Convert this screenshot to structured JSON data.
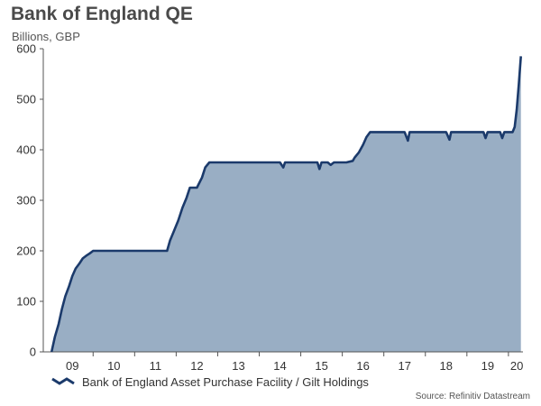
{
  "chart_data": {
    "type": "area",
    "title": "Bank of England QE",
    "subtitle": "Billions, GBP",
    "xlabel": "",
    "ylabel": "",
    "ylim": [
      0,
      600
    ],
    "xlim": [
      2008.8,
      2020.35
    ],
    "yticks": [
      0,
      100,
      200,
      300,
      400,
      500,
      600
    ],
    "xticks": [
      {
        "label": "09",
        "value": 2009.5
      },
      {
        "label": "10",
        "value": 2010.5
      },
      {
        "label": "11",
        "value": 2011.5
      },
      {
        "label": "12",
        "value": 2012.5
      },
      {
        "label": "13",
        "value": 2013.5
      },
      {
        "label": "14",
        "value": 2014.5
      },
      {
        "label": "15",
        "value": 2015.5
      },
      {
        "label": "16",
        "value": 2016.5
      },
      {
        "label": "17",
        "value": 2017.5
      },
      {
        "label": "18",
        "value": 2018.5
      },
      {
        "label": "19",
        "value": 2019.5
      },
      {
        "label": "20",
        "value": 2020.2
      }
    ],
    "year_boundaries": [
      2010.0,
      2011.0,
      2012.0,
      2013.0,
      2014.0,
      2015.0,
      2016.0,
      2017.0,
      2018.0,
      2019.0,
      2020.0
    ],
    "series": [
      {
        "name": "Bank of England Asset Purchase Facility / Gilt Holdings",
        "color": "#1b3a6b",
        "fill": "#99aec4",
        "x": [
          2009.0,
          2009.08,
          2009.17,
          2009.25,
          2009.33,
          2009.42,
          2009.5,
          2009.58,
          2009.67,
          2009.75,
          2009.83,
          2009.92,
          2010.0,
          2010.5,
          2011.0,
          2011.5,
          2011.78,
          2011.85,
          2011.95,
          2012.05,
          2012.15,
          2012.25,
          2012.33,
          2012.5,
          2012.62,
          2012.7,
          2012.8,
          2012.95,
          2013.0,
          2013.2,
          2013.3,
          2013.5,
          2014.0,
          2014.5,
          2014.58,
          2014.62,
          2014.7,
          2015.0,
          2015.4,
          2015.45,
          2015.5,
          2015.65,
          2015.72,
          2015.8,
          2016.0,
          2016.1,
          2016.25,
          2016.3,
          2016.4,
          2016.5,
          2016.58,
          2016.67,
          2016.75,
          2016.83,
          2017.0,
          2017.2,
          2017.5,
          2017.58,
          2017.62,
          2017.7,
          2018.0,
          2018.5,
          2018.58,
          2018.62,
          2018.7,
          2019.0,
          2019.4,
          2019.45,
          2019.5,
          2019.8,
          2019.85,
          2019.9,
          2020.0,
          2020.1,
          2020.15,
          2020.2,
          2020.25,
          2020.3
        ],
        "values": [
          0,
          30,
          55,
          85,
          110,
          130,
          150,
          165,
          175,
          185,
          190,
          195,
          200,
          200,
          200,
          200,
          200,
          220,
          240,
          260,
          285,
          305,
          325,
          325,
          345,
          365,
          375,
          375,
          375,
          375,
          375,
          375,
          375,
          375,
          365,
          375,
          375,
          375,
          375,
          362,
          375,
          375,
          370,
          375,
          375,
          375,
          378,
          385,
          395,
          410,
          425,
          435,
          435,
          435,
          435,
          435,
          435,
          418,
          435,
          435,
          435,
          435,
          420,
          435,
          435,
          435,
          435,
          423,
          435,
          435,
          423,
          435,
          435,
          435,
          445,
          480,
          530,
          585
        ]
      }
    ],
    "legend_position": "bottom-left",
    "source": "Source: Refinitiv Datastream"
  }
}
